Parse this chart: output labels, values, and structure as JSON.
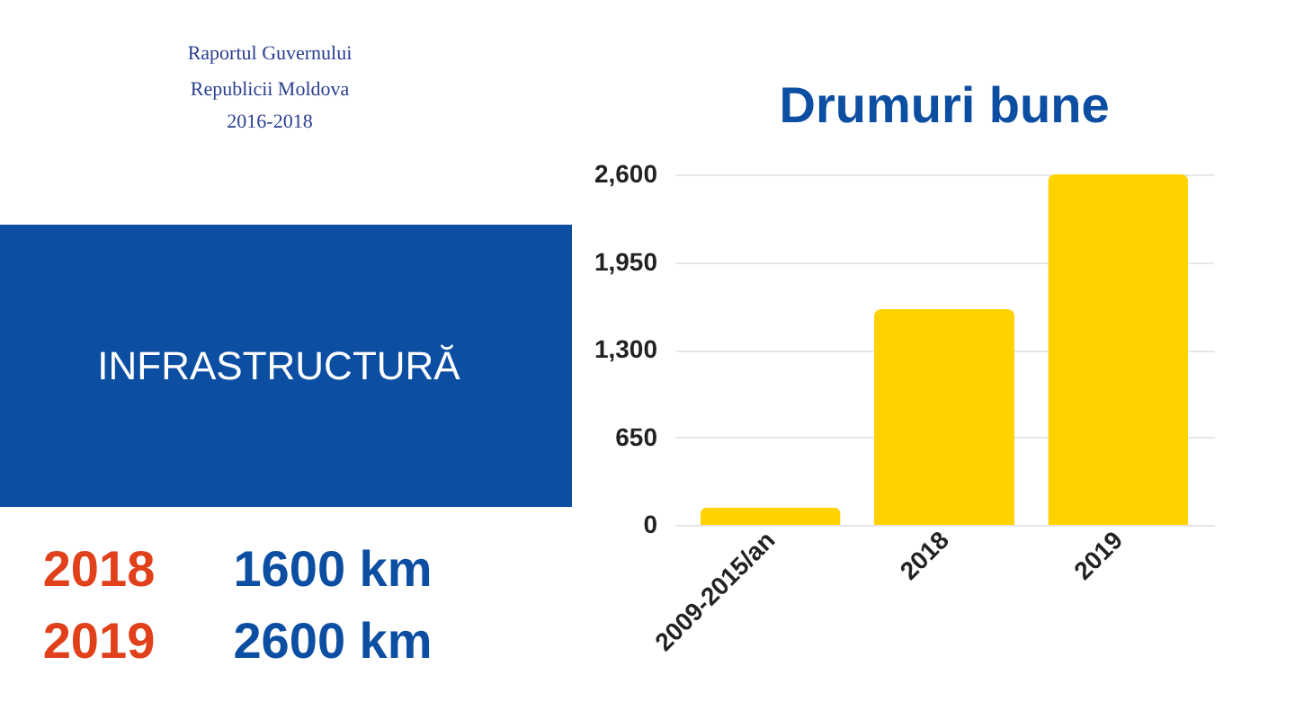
{
  "chart_data": {
    "type": "bar",
    "title": "Drumuri bune",
    "categories": [
      "2009-2015/an",
      "2018",
      "2019"
    ],
    "values": [
      130,
      1600,
      2600
    ],
    "color": "#ffd200",
    "ylim": [
      0,
      2600
    ],
    "yticks": [
      {
        "value": 0,
        "label": "0"
      },
      {
        "value": 650,
        "label": "650"
      },
      {
        "value": 1300,
        "label": "1,300"
      },
      {
        "value": 1950,
        "label": "1,950"
      },
      {
        "value": 2600,
        "label": "2,600"
      }
    ],
    "grid": "y",
    "annotations": [
      "Raportul Guvernului",
      "Republicii Moldova",
      "2016-2018",
      "INFRASTRUCTURĂ",
      "2018",
      "1600 km",
      "2019",
      "2600 km"
    ]
  }
}
